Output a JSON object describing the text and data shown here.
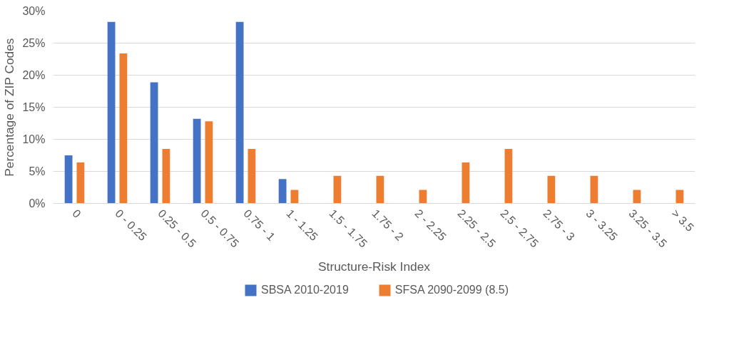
{
  "chart_data": {
    "type": "bar",
    "xlabel": "Structure-Risk Index",
    "ylabel": "Percentage of ZIP Codes",
    "categories": [
      "0",
      "0 - 0.25",
      "0.25 - 0.5",
      "0.5 - 0.75",
      "0.75 - 1",
      "1 - 1.25",
      "1.5 - 1.75",
      "1.75 - 2",
      "2 - 2.25",
      "2.25 - 2.5",
      "2.5 - 2.75",
      "2.75 - 3",
      "3 - 3.25",
      "3.25 - 3.5",
      "> 3.5"
    ],
    "series": [
      {
        "name": "SBSA 2010-2019",
        "color": "#4472c4",
        "values": [
          7.5,
          28.3,
          18.9,
          13.2,
          28.3,
          3.8,
          0,
          0,
          0,
          0,
          0,
          0,
          0,
          0,
          0
        ]
      },
      {
        "name": "SFSA 2090-2099 (8.5)",
        "color": "#ed7d31",
        "values": [
          6.4,
          23.4,
          8.5,
          12.8,
          8.5,
          2.1,
          4.3,
          4.3,
          2.1,
          6.4,
          8.5,
          4.3,
          4.3,
          2.1,
          2.1
        ]
      }
    ],
    "ylim": [
      0,
      30
    ],
    "yticks": [
      {
        "value": 0,
        "label": "0%"
      },
      {
        "value": 5,
        "label": "5%"
      },
      {
        "value": 10,
        "label": "10%"
      },
      {
        "value": 15,
        "label": "15%"
      },
      {
        "value": 20,
        "label": "20%"
      },
      {
        "value": 25,
        "label": "25%"
      },
      {
        "value": 30,
        "label": "30%"
      }
    ],
    "grid": "y",
    "legend": "bottom"
  }
}
